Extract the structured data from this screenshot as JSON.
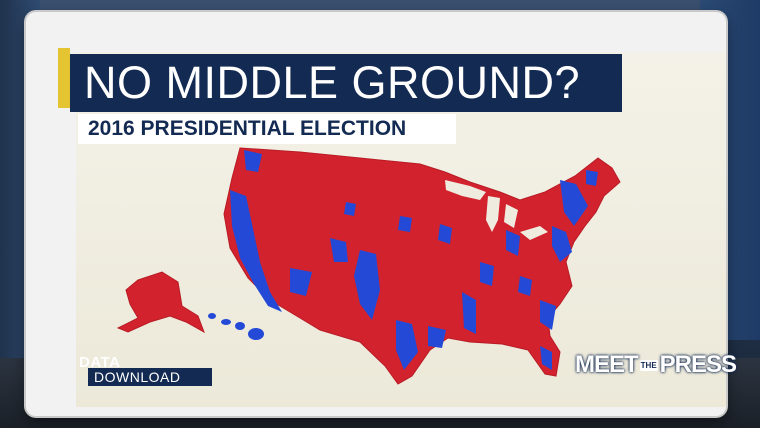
{
  "graphic": {
    "headline": "NO MIDDLE GROUND?",
    "subtitle": "2016 PRESIDENTIAL ELECTION"
  },
  "map": {
    "subject": "county-level results",
    "colors": {
      "red": "#d2222d",
      "blue": "#2349d6",
      "background": "#efecdf",
      "accent": "#e4c430",
      "navy": "#132a52"
    }
  },
  "branding": {
    "segment_line1": "DATA_",
    "segment_line2": "DOWNLOAD",
    "show_name_left": "MEET",
    "show_name_mid": "THE",
    "show_name_right": "PRESS"
  }
}
